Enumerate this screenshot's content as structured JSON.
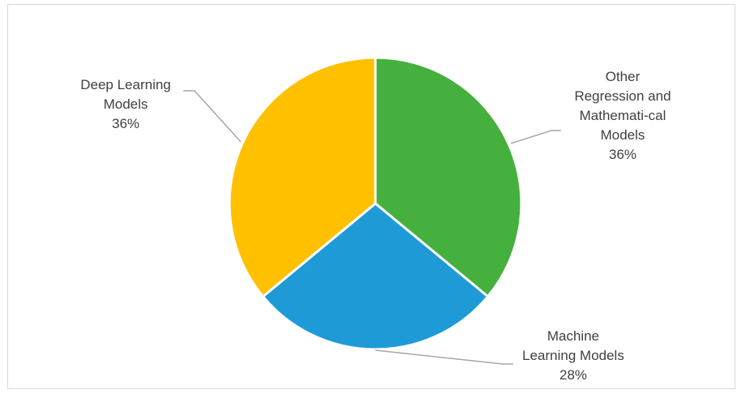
{
  "chart_data": {
    "type": "pie",
    "categories": [
      "Other Regression and Mathemati-cal Models",
      "Machine Learning Models",
      "Deep Learning Models"
    ],
    "values": [
      36,
      28,
      36
    ],
    "colors": [
      "#45B03D",
      "#1E9BD7",
      "#FFC000"
    ],
    "labels": [
      {
        "lines": [
          "Other",
          "Regression and",
          "Mathemati-cal",
          "Models",
          "36%"
        ]
      },
      {
        "lines": [
          "Machine",
          "Learning Models",
          "28%"
        ]
      },
      {
        "lines": [
          "Deep Learning",
          "Models",
          "36%"
        ]
      }
    ],
    "legend": "none",
    "title": ""
  }
}
